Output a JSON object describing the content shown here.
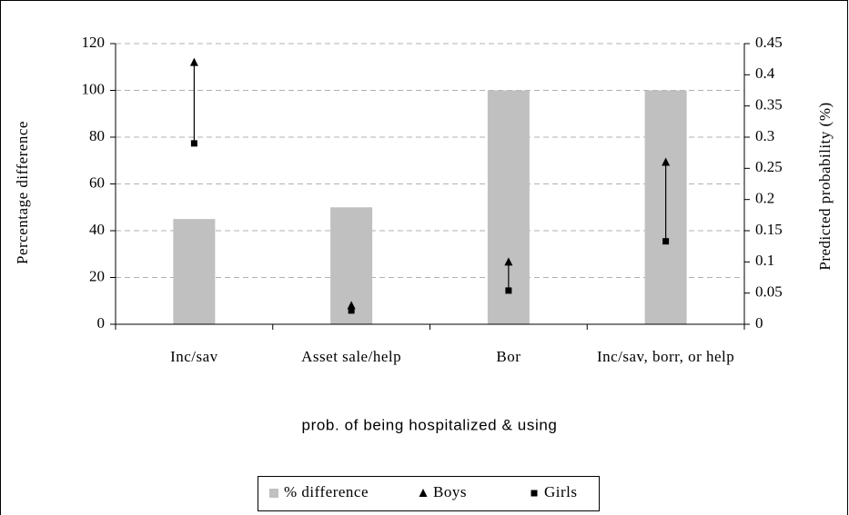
{
  "chart_data": {
    "type": "bar",
    "xlabel": "prob. of being hospitalized & using",
    "ylabel": "Percentage difference",
    "y2label": "Predicted probability (%)",
    "categories": [
      "Inc/sav",
      "Asset sale/help",
      "Bor",
      "Inc/sav, borr, or help"
    ],
    "series": [
      {
        "name": "% difference",
        "color": "#c0c0c0",
        "type": "bar",
        "values": [
          45,
          50,
          100,
          100
        ]
      },
      {
        "name": "Boys",
        "color": "#000000",
        "type": "scatter",
        "marker": "triangle",
        "axis": "y2",
        "values": [
          0.42,
          0.03,
          0.1,
          0.26
        ]
      },
      {
        "name": "Girls",
        "color": "#000000",
        "type": "scatter",
        "marker": "square",
        "axis": "y2",
        "values": [
          0.29,
          0.022,
          0.054,
          0.133
        ]
      }
    ],
    "ylim": [
      0,
      120
    ],
    "yticks": [
      0,
      20,
      40,
      60,
      80,
      100,
      120
    ],
    "y2lim": [
      0,
      0.45
    ],
    "y2ticks": [
      0,
      0.05,
      0.1,
      0.15,
      0.2,
      0.25,
      0.3,
      0.35,
      0.4,
      0.45
    ],
    "grid": true,
    "legend": "bottom"
  }
}
